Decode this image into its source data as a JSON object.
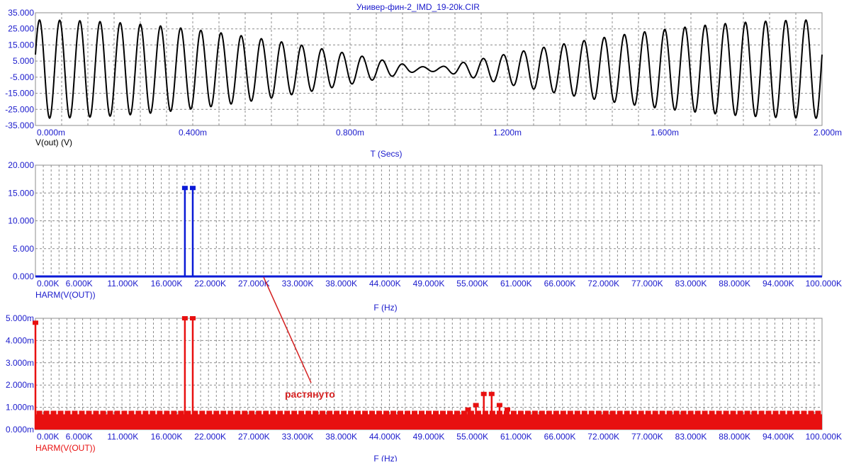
{
  "window": {
    "title": "Универ-фин-2_IMD_19-20k.CIR"
  },
  "annotation": {
    "text": "растянуто",
    "color": "#d42020"
  },
  "colors": {
    "axis_text": "#1a1acc",
    "grid": "#8c8c8c",
    "frame": "#8c8c8c"
  },
  "chart_data": [
    {
      "type": "line",
      "title": "",
      "trace_label": "V(out) (V)",
      "xlabel": "T (Secs)",
      "ylabel": "",
      "xlim": [
        0,
        2.0
      ],
      "ylim": [
        -35,
        35
      ],
      "grid": true,
      "line_color": "#000000",
      "trace_label_color": "#000000",
      "yticks": [
        "35.000",
        "25.000",
        "15.000",
        "5.000",
        "-5.000",
        "-15.000",
        "-25.000",
        "-35.000"
      ],
      "xticks": [
        "0.000m",
        "0.400m",
        "0.800m",
        "1.200m",
        "1.600m",
        "2.000m"
      ],
      "series": [
        {
          "amplitude": 30.5,
          "carrier_cycles": 39,
          "envelope_minima": [
            0.5,
            1.5
          ],
          "envelope_floor": 1.5
        }
      ]
    },
    {
      "type": "bar",
      "title": "",
      "trace_label": "HARM(V(OUT))",
      "xlabel": "F (Hz)",
      "ylabel": "",
      "xlim": [
        0,
        100
      ],
      "ylim": [
        0,
        20
      ],
      "grid": true,
      "bar_color": "#0a1ad6",
      "trace_label_color": "#1a1acc",
      "yticks": [
        "20.000",
        "15.000",
        "10.000",
        "5.000",
        "0.000"
      ],
      "xticks": [
        "0.00K",
        "6.000K",
        "11.000K",
        "16.000K",
        "22.000K",
        "27.000K",
        "33.000K",
        "38.000K",
        "44.000K",
        "49.000K",
        "55.000K",
        "61.000K",
        "66.000K",
        "72.000K",
        "77.000K",
        "83.000K",
        "88.000K",
        "94.000K",
        "100.000K"
      ],
      "series": [
        {
          "name": "HARM(V(OUT))",
          "x": [
            19,
            20
          ],
          "values": [
            15.9,
            15.9
          ]
        }
      ]
    },
    {
      "type": "bar",
      "title": "",
      "trace_label": "HARM(V(OUT))",
      "xlabel": "F (Hz)",
      "ylabel": "",
      "xlim": [
        0,
        100
      ],
      "ylim": [
        0,
        5
      ],
      "grid": true,
      "bar_color": "#e81010",
      "trace_label_color": "#e81010",
      "yticks": [
        "5.000m",
        "4.000m",
        "3.000m",
        "2.000m",
        "1.000m",
        "0.000m"
      ],
      "xticks": [
        "0.00K",
        "6.000K",
        "11.000K",
        "16.000K",
        "22.000K",
        "27.000K",
        "33.000K",
        "38.000K",
        "44.000K",
        "49.000K",
        "55.000K",
        "61.000K",
        "66.000K",
        "72.000K",
        "77.000K",
        "83.000K",
        "88.000K",
        "94.000K",
        "100.000K"
      ],
      "series": [
        {
          "name": "HARM(V(OUT))",
          "noise_floor": 0.75,
          "spacing_khz": 0.5,
          "x": [
            0,
            19,
            20,
            55,
            56,
            57,
            58,
            59,
            60,
            96,
            97,
            98,
            99
          ],
          "values": [
            4.8,
            5.0,
            5.0,
            0.9,
            1.1,
            1.6,
            1.6,
            1.1,
            0.9,
            0.4,
            0.6,
            0.4,
            0.6
          ]
        }
      ]
    }
  ]
}
